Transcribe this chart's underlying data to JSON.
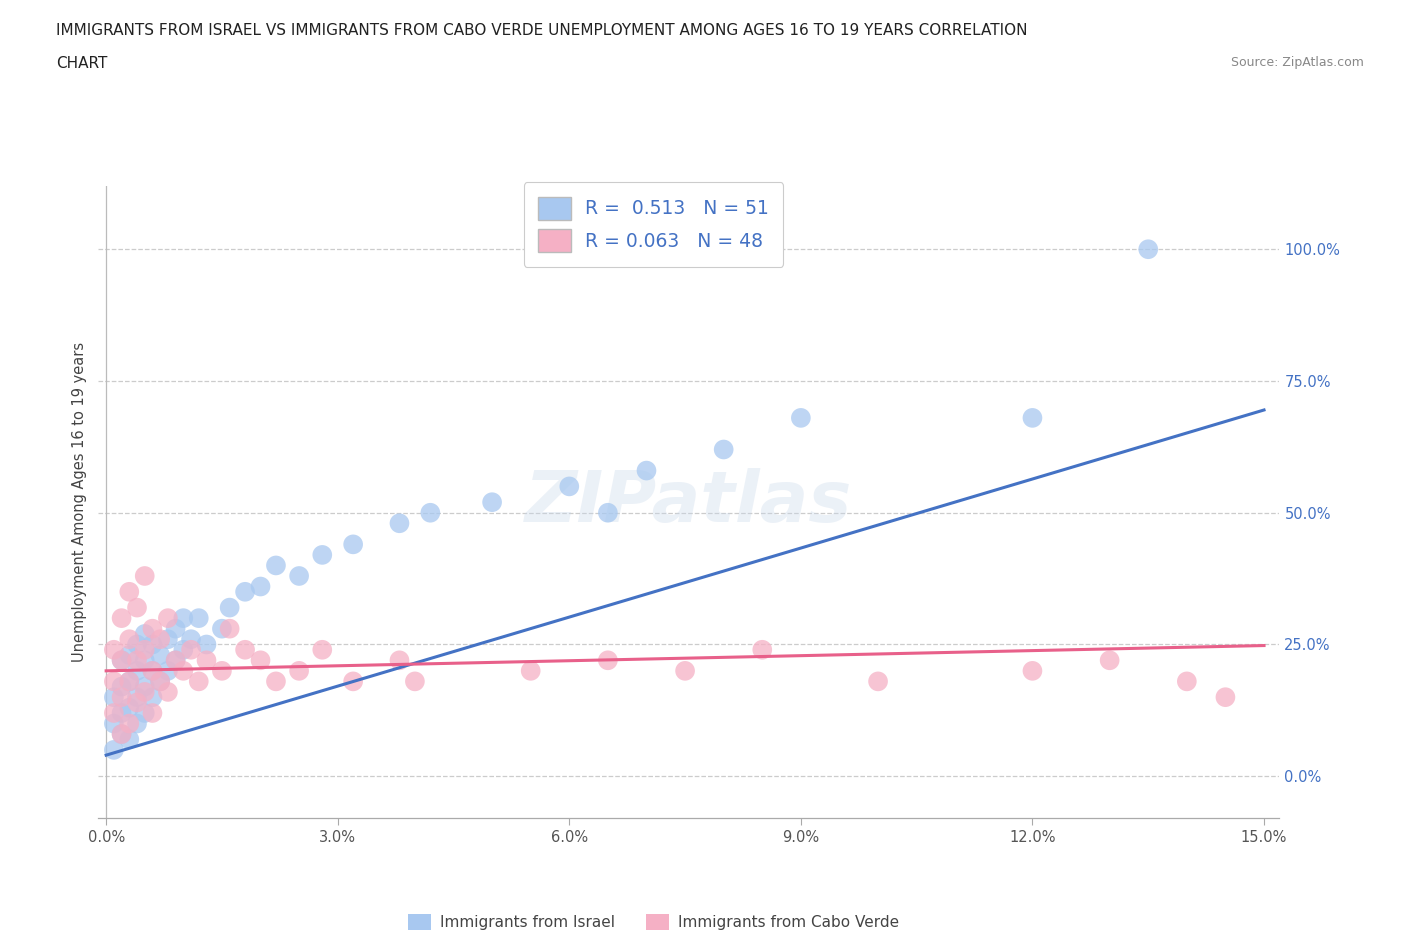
{
  "title_line1": "IMMIGRANTS FROM ISRAEL VS IMMIGRANTS FROM CABO VERDE UNEMPLOYMENT AMONG AGES 16 TO 19 YEARS CORRELATION",
  "title_line2": "CHART",
  "source": "Source: ZipAtlas.com",
  "ylabel": "Unemployment Among Ages 16 to 19 years",
  "xlim": [
    -0.001,
    0.152
  ],
  "ylim": [
    -0.08,
    1.12
  ],
  "xticks": [
    0.0,
    0.03,
    0.06,
    0.09,
    0.12,
    0.15
  ],
  "yticks": [
    0.0,
    0.25,
    0.5,
    0.75,
    1.0
  ],
  "xticklabels": [
    "0.0%",
    "3.0%",
    "6.0%",
    "9.0%",
    "12.0%",
    "15.0%"
  ],
  "yticklabels": [
    "0.0%",
    "25.0%",
    "50.0%",
    "75.0%",
    "100.0%"
  ],
  "israel_R": 0.513,
  "israel_N": 51,
  "caboverde_R": 0.063,
  "caboverde_N": 48,
  "legend_label1": "Immigrants from Israel",
  "legend_label2": "Immigrants from Cabo Verde",
  "color_israel": "#A8C8F0",
  "color_caboverde": "#F5B0C5",
  "color_line_israel": "#4472C4",
  "color_line_caboverde": "#E8608A",
  "watermark": "ZIPatlas",
  "israel_line_y0": 0.04,
  "israel_line_y1": 0.695,
  "cv_line_y0": 0.2,
  "cv_line_y1": 0.248,
  "israel_x": [
    0.001,
    0.001,
    0.001,
    0.002,
    0.002,
    0.002,
    0.002,
    0.003,
    0.003,
    0.003,
    0.003,
    0.004,
    0.004,
    0.004,
    0.004,
    0.005,
    0.005,
    0.005,
    0.005,
    0.006,
    0.006,
    0.006,
    0.007,
    0.007,
    0.008,
    0.008,
    0.009,
    0.009,
    0.01,
    0.01,
    0.011,
    0.012,
    0.013,
    0.015,
    0.016,
    0.018,
    0.02,
    0.022,
    0.025,
    0.028,
    0.032,
    0.038,
    0.042,
    0.05,
    0.06,
    0.065,
    0.07,
    0.08,
    0.09,
    0.12,
    0.135
  ],
  "israel_y": [
    0.05,
    0.1,
    0.15,
    0.08,
    0.12,
    0.17,
    0.22,
    0.07,
    0.13,
    0.18,
    0.23,
    0.1,
    0.15,
    0.2,
    0.25,
    0.12,
    0.17,
    0.22,
    0.27,
    0.15,
    0.2,
    0.25,
    0.18,
    0.23,
    0.2,
    0.26,
    0.22,
    0.28,
    0.24,
    0.3,
    0.26,
    0.3,
    0.25,
    0.28,
    0.32,
    0.35,
    0.36,
    0.4,
    0.38,
    0.42,
    0.44,
    0.48,
    0.5,
    0.52,
    0.55,
    0.5,
    0.58,
    0.62,
    0.68,
    0.68,
    1.0
  ],
  "caboverde_x": [
    0.001,
    0.001,
    0.001,
    0.002,
    0.002,
    0.002,
    0.002,
    0.003,
    0.003,
    0.003,
    0.003,
    0.004,
    0.004,
    0.004,
    0.005,
    0.005,
    0.005,
    0.006,
    0.006,
    0.006,
    0.007,
    0.007,
    0.008,
    0.008,
    0.009,
    0.01,
    0.011,
    0.012,
    0.013,
    0.015,
    0.016,
    0.018,
    0.02,
    0.022,
    0.025,
    0.028,
    0.032,
    0.038,
    0.04,
    0.055,
    0.065,
    0.075,
    0.085,
    0.1,
    0.12,
    0.13,
    0.14,
    0.145
  ],
  "caboverde_y": [
    0.12,
    0.18,
    0.24,
    0.08,
    0.15,
    0.22,
    0.3,
    0.1,
    0.18,
    0.26,
    0.35,
    0.14,
    0.22,
    0.32,
    0.16,
    0.24,
    0.38,
    0.12,
    0.2,
    0.28,
    0.18,
    0.26,
    0.16,
    0.3,
    0.22,
    0.2,
    0.24,
    0.18,
    0.22,
    0.2,
    0.28,
    0.24,
    0.22,
    0.18,
    0.2,
    0.24,
    0.18,
    0.22,
    0.18,
    0.2,
    0.22,
    0.2,
    0.24,
    0.18,
    0.2,
    0.22,
    0.18,
    0.15
  ]
}
